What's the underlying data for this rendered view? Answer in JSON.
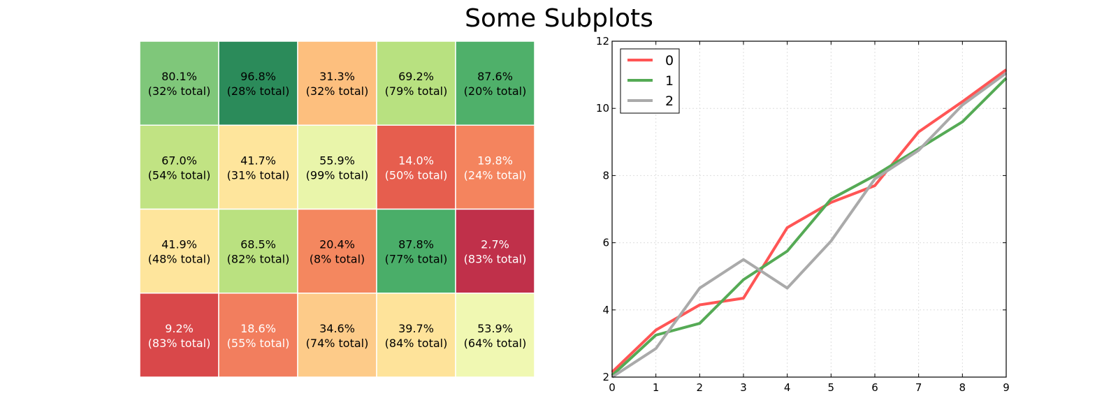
{
  "title": "Some Subplots",
  "chart_data": [
    {
      "type": "heatmap",
      "rows": 4,
      "cols": 5,
      "cells": [
        [
          {
            "pct": "80.1%",
            "total": "(32% total)",
            "color": "#7fc77a",
            "text_color": "#000000"
          },
          {
            "pct": "96.8%",
            "total": "(28% total)",
            "color": "#2b8b5a",
            "text_color": "#000000"
          },
          {
            "pct": "31.3%",
            "total": "(32% total)",
            "color": "#fdbf7e",
            "text_color": "#000000"
          },
          {
            "pct": "69.2%",
            "total": "(79% total)",
            "color": "#b8e180",
            "text_color": "#000000"
          },
          {
            "pct": "87.6%",
            "total": "(20% total)",
            "color": "#4fb06a",
            "text_color": "#000000"
          }
        ],
        [
          {
            "pct": "67.0%",
            "total": "(54% total)",
            "color": "#c1e383",
            "text_color": "#000000"
          },
          {
            "pct": "41.7%",
            "total": "(31% total)",
            "color": "#fee59c",
            "text_color": "#000000"
          },
          {
            "pct": "55.9%",
            "total": "(99% total)",
            "color": "#e9f5aa",
            "text_color": "#000000"
          },
          {
            "pct": "14.0%",
            "total": "(50% total)",
            "color": "#e65e4e",
            "text_color": "#ffffff"
          },
          {
            "pct": "19.8%",
            "total": "(24% total)",
            "color": "#f4845e",
            "text_color": "#ffffff"
          }
        ],
        [
          {
            "pct": "41.9%",
            "total": "(48% total)",
            "color": "#fee59c",
            "text_color": "#000000"
          },
          {
            "pct": "68.5%",
            "total": "(82% total)",
            "color": "#bae180",
            "text_color": "#000000"
          },
          {
            "pct": "20.4%",
            "total": "(8% total)",
            "color": "#f4875f",
            "text_color": "#000000"
          },
          {
            "pct": "87.8%",
            "total": "(77% total)",
            "color": "#4aae69",
            "text_color": "#000000"
          },
          {
            "pct": "2.7%",
            "total": "(83% total)",
            "color": "#c0304a",
            "text_color": "#ffffff"
          }
        ],
        [
          {
            "pct": "9.2%",
            "total": "(83% total)",
            "color": "#d9484a",
            "text_color": "#ffffff"
          },
          {
            "pct": "18.6%",
            "total": "(55% total)",
            "color": "#f27e5e",
            "text_color": "#ffffff"
          },
          {
            "pct": "34.6%",
            "total": "(74% total)",
            "color": "#fdcb89",
            "text_color": "#000000"
          },
          {
            "pct": "39.7%",
            "total": "(84% total)",
            "color": "#fee39a",
            "text_color": "#000000"
          },
          {
            "pct": "53.9%",
            "total": "(64% total)",
            "color": "#f0f8b2",
            "text_color": "#000000"
          }
        ]
      ]
    },
    {
      "type": "line",
      "x": [
        0,
        1,
        2,
        3,
        4,
        5,
        6,
        7,
        8,
        9
      ],
      "xlim": [
        0,
        9
      ],
      "ylim": [
        2,
        12
      ],
      "xticks": [
        0,
        1,
        2,
        3,
        4,
        5,
        6,
        7,
        8,
        9
      ],
      "yticks": [
        2,
        4,
        6,
        8,
        10,
        12
      ],
      "grid": true,
      "legend": "top-left",
      "series": [
        {
          "name": "0",
          "color": "#ff5555",
          "values": [
            2.15,
            3.4,
            4.15,
            4.35,
            6.45,
            7.2,
            7.7,
            9.3,
            10.2,
            11.15
          ]
        },
        {
          "name": "1",
          "color": "#55aa55",
          "values": [
            2.05,
            3.25,
            3.6,
            4.9,
            5.75,
            7.3,
            8.0,
            8.8,
            9.6,
            10.9
          ]
        },
        {
          "name": "2",
          "color": "#aaaaaa",
          "values": [
            2.0,
            2.85,
            4.65,
            5.5,
            4.65,
            6.05,
            7.9,
            8.75,
            10.1,
            11.05
          ]
        }
      ]
    }
  ]
}
